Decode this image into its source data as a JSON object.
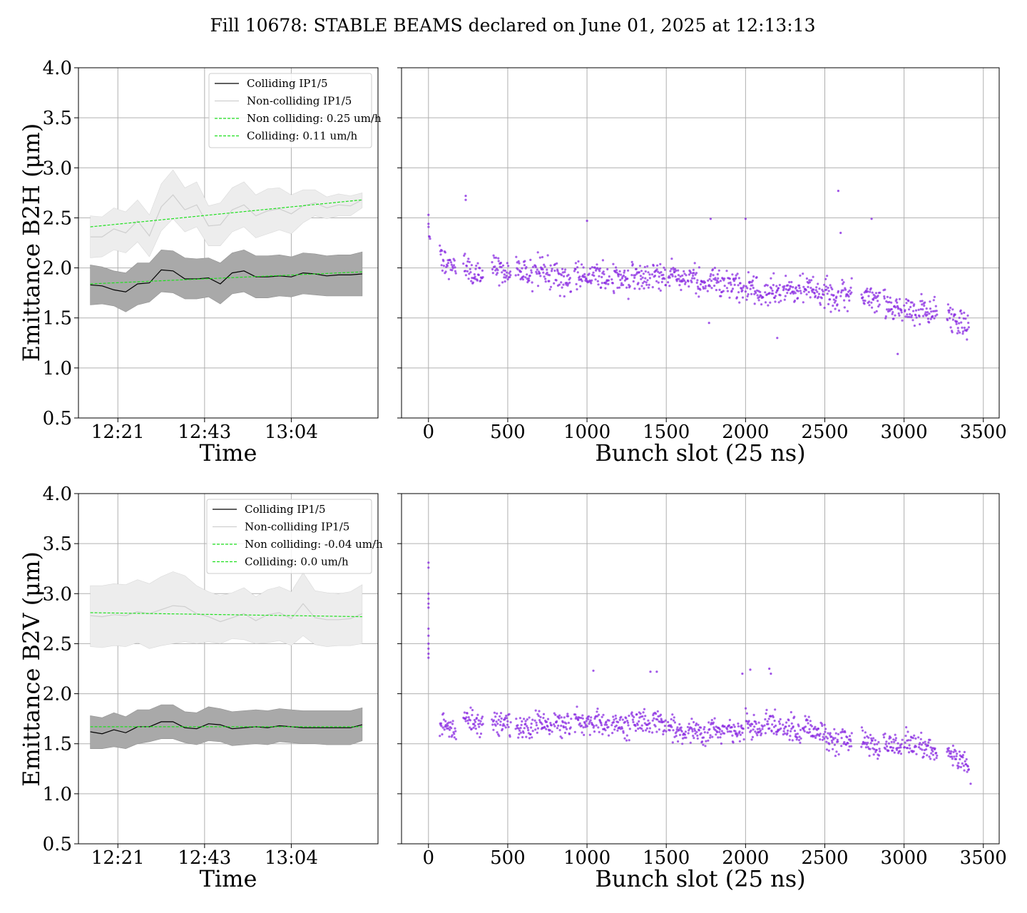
{
  "figure": {
    "title": "Fill 10678: STABLE BEAMS declared on June 01, 2025 at 12:13:13"
  },
  "colors": {
    "colliding": "#000000",
    "colliding_band": "#a9a9a9",
    "noncolliding": "#cfcfcf",
    "noncolliding_band": "#ededed",
    "fit": "#1fe01f",
    "bunch_points": "#8a2be2",
    "grid": "#b0b0b0"
  },
  "chart_data": [
    {
      "type": "line",
      "ylabel": "Emittance B2H (μm)",
      "xlabel": "Time",
      "ylim": [
        0.5,
        4.0
      ],
      "xlim": [
        0,
        38
      ],
      "ytick_labels": [
        "0.5",
        "1.0",
        "1.5",
        "2.0",
        "2.5",
        "3.0",
        "3.5",
        "4.0"
      ],
      "xtick_labels": [
        "12:21",
        "12:43",
        "13:04"
      ],
      "xtick_positions": [
        5,
        16,
        27
      ],
      "grid": true,
      "legend_position": "top-right",
      "series": [
        {
          "name": "Colliding IP1/5",
          "x": [
            1.5,
            3,
            4.5,
            6,
            7.5,
            9,
            10.5,
            12,
            13.5,
            15,
            16.5,
            18,
            19.5,
            21,
            22.5,
            24,
            25.5,
            27,
            28.5,
            30,
            31.5,
            33,
            34.5,
            36
          ],
          "values": [
            1.83,
            1.82,
            1.78,
            1.76,
            1.84,
            1.85,
            1.98,
            1.97,
            1.89,
            1.89,
            1.9,
            1.84,
            1.95,
            1.97,
            1.91,
            1.91,
            1.92,
            1.91,
            1.95,
            1.94,
            1.92,
            1.93,
            1.93,
            1.94
          ],
          "lower": [
            1.63,
            1.64,
            1.62,
            1.56,
            1.63,
            1.66,
            1.76,
            1.75,
            1.69,
            1.69,
            1.71,
            1.64,
            1.74,
            1.76,
            1.7,
            1.7,
            1.72,
            1.71,
            1.74,
            1.73,
            1.72,
            1.72,
            1.72,
            1.72
          ],
          "upper": [
            2.03,
            2.01,
            1.97,
            1.95,
            2.05,
            2.05,
            2.18,
            2.17,
            2.1,
            2.09,
            2.1,
            2.05,
            2.15,
            2.18,
            2.12,
            2.12,
            2.13,
            2.11,
            2.15,
            2.14,
            2.12,
            2.13,
            2.13,
            2.16
          ]
        },
        {
          "name": "Non-colliding IP1/5",
          "x": [
            1.5,
            3,
            4.5,
            6,
            7.5,
            9,
            10.5,
            12,
            13.5,
            15,
            16.5,
            18,
            19.5,
            21,
            22.5,
            24,
            25.5,
            27,
            28.5,
            30,
            31.5,
            33,
            34.5,
            36
          ],
          "values": [
            2.31,
            2.31,
            2.39,
            2.35,
            2.47,
            2.32,
            2.61,
            2.73,
            2.58,
            2.63,
            2.42,
            2.43,
            2.58,
            2.63,
            2.52,
            2.57,
            2.59,
            2.54,
            2.62,
            2.65,
            2.6,
            2.63,
            2.62,
            2.68
          ],
          "lower": [
            2.1,
            2.11,
            2.18,
            2.15,
            2.26,
            2.11,
            2.37,
            2.49,
            2.36,
            2.41,
            2.22,
            2.22,
            2.36,
            2.41,
            2.3,
            2.34,
            2.38,
            2.34,
            2.45,
            2.52,
            2.49,
            2.52,
            2.52,
            2.6
          ],
          "upper": [
            2.52,
            2.51,
            2.6,
            2.56,
            2.68,
            2.53,
            2.84,
            2.98,
            2.8,
            2.86,
            2.62,
            2.65,
            2.8,
            2.86,
            2.73,
            2.79,
            2.8,
            2.73,
            2.78,
            2.78,
            2.71,
            2.74,
            2.72,
            2.75
          ]
        },
        {
          "name": "Non colliding: 0.25 um/h",
          "style": "dashed",
          "x": [
            1.5,
            36
          ],
          "values": [
            2.41,
            2.68
          ]
        },
        {
          "name": "Colliding: 0.11 um/h",
          "style": "dashed",
          "x": [
            1.5,
            36
          ],
          "values": [
            1.84,
            1.96
          ]
        }
      ]
    },
    {
      "type": "scatter",
      "xlabel": "Bunch slot (25 ns)",
      "ylim": [
        0.5,
        4.0
      ],
      "xlim": [
        -170,
        3600
      ],
      "xtick_labels": [
        "0",
        "500",
        "1000",
        "1500",
        "2000",
        "2500",
        "3000",
        "3500"
      ],
      "grid": true,
      "trains": [
        [
          0,
          10
        ],
        [
          70,
          175
        ],
        [
          220,
          345
        ],
        [
          400,
          520
        ],
        [
          550,
          660
        ],
        [
          670,
          780
        ],
        [
          790,
          900
        ],
        [
          920,
          1035
        ],
        [
          1040,
          1140
        ],
        [
          1155,
          1270
        ],
        [
          1280,
          1400
        ],
        [
          1410,
          1500
        ],
        [
          1510,
          1625
        ],
        [
          1635,
          1750
        ],
        [
          1760,
          1870
        ],
        [
          1880,
          1990
        ],
        [
          2000,
          2110
        ],
        [
          2120,
          2225
        ],
        [
          2235,
          2350
        ],
        [
          2360,
          2475
        ],
        [
          2480,
          2590
        ],
        [
          2600,
          2670
        ],
        [
          2730,
          2850
        ],
        [
          2870,
          2990
        ],
        [
          3000,
          3080
        ],
        [
          3090,
          3210
        ],
        [
          3270,
          3410
        ]
      ],
      "trend": [
        [
          0,
          2.35
        ],
        [
          100,
          2.08
        ],
        [
          300,
          1.96
        ],
        [
          600,
          1.93
        ],
        [
          1000,
          1.9
        ],
        [
          1400,
          1.9
        ],
        [
          1800,
          1.85
        ],
        [
          2100,
          1.77
        ],
        [
          2400,
          1.8
        ],
        [
          2600,
          1.72
        ],
        [
          2800,
          1.65
        ],
        [
          3000,
          1.58
        ],
        [
          3200,
          1.55
        ],
        [
          3420,
          1.45
        ]
      ],
      "spread": 0.14,
      "outliers": [
        [
          0,
          2.53
        ],
        [
          0,
          2.44
        ],
        [
          235,
          2.72
        ],
        [
          235,
          2.68
        ],
        [
          1000,
          2.47
        ],
        [
          1780,
          2.49
        ],
        [
          2000,
          2.49
        ],
        [
          2585,
          2.77
        ],
        [
          2600,
          2.35
        ],
        [
          2795,
          2.49
        ],
        [
          1770,
          1.45
        ],
        [
          2200,
          1.3
        ],
        [
          2960,
          1.14
        ]
      ]
    },
    {
      "type": "line",
      "ylabel": "Emittance B2V (μm)",
      "xlabel": "Time",
      "ylim": [
        0.5,
        4.0
      ],
      "xlim": [
        0,
        38
      ],
      "ytick_labels": [
        "0.5",
        "1.0",
        "1.5",
        "2.0",
        "2.5",
        "3.0",
        "3.5",
        "4.0"
      ],
      "xtick_labels": [
        "12:21",
        "12:43",
        "13:04"
      ],
      "xtick_positions": [
        5,
        16,
        27
      ],
      "grid": true,
      "legend_position": "top-right",
      "series": [
        {
          "name": "Colliding IP1/5",
          "x": [
            1.5,
            3,
            4.5,
            6,
            7.5,
            9,
            10.5,
            12,
            13.5,
            15,
            16.5,
            18,
            19.5,
            21,
            22.5,
            24,
            25.5,
            27,
            28.5,
            30,
            31.5,
            33,
            34.5,
            36
          ],
          "values": [
            1.62,
            1.6,
            1.64,
            1.61,
            1.67,
            1.67,
            1.72,
            1.72,
            1.66,
            1.65,
            1.7,
            1.69,
            1.65,
            1.66,
            1.67,
            1.66,
            1.68,
            1.67,
            1.66,
            1.66,
            1.66,
            1.66,
            1.66,
            1.69
          ],
          "lower": [
            1.45,
            1.45,
            1.47,
            1.45,
            1.5,
            1.52,
            1.55,
            1.55,
            1.51,
            1.49,
            1.53,
            1.52,
            1.48,
            1.49,
            1.5,
            1.49,
            1.52,
            1.51,
            1.5,
            1.5,
            1.49,
            1.49,
            1.49,
            1.53
          ],
          "upper": [
            1.78,
            1.76,
            1.81,
            1.77,
            1.84,
            1.84,
            1.89,
            1.89,
            1.82,
            1.81,
            1.87,
            1.85,
            1.82,
            1.83,
            1.84,
            1.83,
            1.85,
            1.84,
            1.83,
            1.83,
            1.83,
            1.83,
            1.83,
            1.86
          ]
        },
        {
          "name": "Non-colliding IP1/5",
          "x": [
            1.5,
            3,
            4.5,
            6,
            7.5,
            9,
            10.5,
            12,
            13.5,
            15,
            16.5,
            18,
            19.5,
            21,
            22.5,
            24,
            25.5,
            27,
            28.5,
            30,
            31.5,
            33,
            34.5,
            36
          ],
          "values": [
            2.78,
            2.77,
            2.79,
            2.78,
            2.82,
            2.8,
            2.84,
            2.88,
            2.87,
            2.8,
            2.77,
            2.72,
            2.76,
            2.8,
            2.73,
            2.79,
            2.81,
            2.75,
            2.9,
            2.76,
            2.74,
            2.74,
            2.75,
            2.8
          ],
          "lower": [
            2.47,
            2.46,
            2.48,
            2.47,
            2.51,
            2.45,
            2.48,
            2.5,
            2.52,
            2.5,
            2.52,
            2.5,
            2.55,
            2.54,
            2.5,
            2.51,
            2.53,
            2.48,
            2.58,
            2.49,
            2.47,
            2.48,
            2.48,
            2.5
          ],
          "upper": [
            3.08,
            3.08,
            3.1,
            3.09,
            3.14,
            3.1,
            3.17,
            3.22,
            3.18,
            3.08,
            3.02,
            2.98,
            3.01,
            3.06,
            2.97,
            3.04,
            3.07,
            3.02,
            3.21,
            3.03,
            3.01,
            3.0,
            3.02,
            3.09
          ]
        },
        {
          "name": "Non colliding: -0.04 um/h",
          "style": "dashed",
          "x": [
            1.5,
            36
          ],
          "values": [
            2.81,
            2.77
          ]
        },
        {
          "name": "Colliding: 0.0 um/h",
          "style": "dashed",
          "x": [
            1.5,
            36
          ],
          "values": [
            1.67,
            1.67
          ]
        }
      ]
    },
    {
      "type": "scatter",
      "xlabel": "Bunch slot (25 ns)",
      "ylim": [
        0.5,
        4.0
      ],
      "xlim": [
        -170,
        3600
      ],
      "xtick_labels": [
        "0",
        "500",
        "1000",
        "1500",
        "2000",
        "2500",
        "3000",
        "3500"
      ],
      "grid": true,
      "trains": [
        [
          70,
          175
        ],
        [
          220,
          345
        ],
        [
          400,
          520
        ],
        [
          550,
          660
        ],
        [
          670,
          780
        ],
        [
          790,
          900
        ],
        [
          920,
          1035
        ],
        [
          1040,
          1140
        ],
        [
          1155,
          1270
        ],
        [
          1280,
          1400
        ],
        [
          1410,
          1500
        ],
        [
          1510,
          1625
        ],
        [
          1635,
          1750
        ],
        [
          1760,
          1870
        ],
        [
          1880,
          1990
        ],
        [
          2000,
          2110
        ],
        [
          2120,
          2225
        ],
        [
          2235,
          2350
        ],
        [
          2360,
          2475
        ],
        [
          2480,
          2590
        ],
        [
          2600,
          2670
        ],
        [
          2730,
          2850
        ],
        [
          2870,
          2990
        ],
        [
          3000,
          3080
        ],
        [
          3090,
          3210
        ],
        [
          3270,
          3410
        ]
      ],
      "trend": [
        [
          70,
          1.7
        ],
        [
          400,
          1.68
        ],
        [
          800,
          1.66
        ],
        [
          1100,
          1.7
        ],
        [
          1400,
          1.75
        ],
        [
          1600,
          1.64
        ],
        [
          2000,
          1.65
        ],
        [
          2300,
          1.66
        ],
        [
          2500,
          1.58
        ],
        [
          2700,
          1.52
        ],
        [
          2900,
          1.45
        ],
        [
          3100,
          1.45
        ],
        [
          3300,
          1.38
        ],
        [
          3420,
          1.25
        ]
      ],
      "spread": 0.12,
      "outliers": [
        [
          0,
          3.31
        ],
        [
          0,
          3.26
        ],
        [
          0,
          3.0
        ],
        [
          0,
          2.95
        ],
        [
          0,
          2.9
        ],
        [
          0,
          2.86
        ],
        [
          0,
          2.65
        ],
        [
          0,
          2.58
        ],
        [
          0,
          2.5
        ],
        [
          0,
          2.45
        ],
        [
          0,
          2.4
        ],
        [
          0,
          2.36
        ],
        [
          1040,
          2.23
        ],
        [
          1400,
          2.22
        ],
        [
          1440,
          2.22
        ],
        [
          1980,
          2.2
        ],
        [
          2030,
          2.24
        ],
        [
          2150,
          2.25
        ],
        [
          2160,
          2.2
        ],
        [
          3420,
          1.1
        ]
      ]
    }
  ]
}
